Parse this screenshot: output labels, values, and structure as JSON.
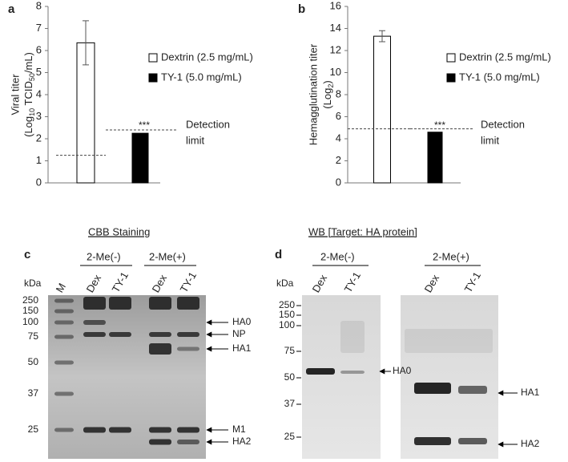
{
  "chart_data": [
    {
      "type": "bar",
      "panel_label": "a",
      "ylabel": "Viral titer",
      "ylabel_parts": [
        "(Log",
        "10",
        " TCID",
        "50",
        "/mL)"
      ],
      "categories": [
        null,
        null
      ],
      "series": [
        {
          "name": "Dextrin (2.5 mg/mL)",
          "color": "#ffffff",
          "values": [
            6.35,
            null
          ],
          "errors": [
            1.0,
            null
          ]
        },
        {
          "name": "TY-1 (5.0 mg/mL)",
          "color": "#000000",
          "values": [
            null,
            2.25
          ],
          "errors": [
            null,
            null
          ]
        }
      ],
      "detection_limit": [
        1.25,
        2.4
      ],
      "annotations": [
        "***",
        "Detection",
        "limit"
      ],
      "ylim": [
        0,
        8
      ],
      "yticks": [
        0,
        1,
        2,
        3,
        4,
        5,
        6,
        7,
        8
      ]
    },
    {
      "type": "bar",
      "panel_label": "b",
      "ylabel": "Hemagglutination titer",
      "ylabel_parts": [
        "(Log",
        "2",
        ")"
      ],
      "categories": [
        null,
        null
      ],
      "series": [
        {
          "name": "Dextrin (2.5 mg/mL)",
          "color": "#ffffff",
          "values": [
            13.3,
            null
          ],
          "errors": [
            0.5,
            null
          ]
        },
        {
          "name": "TY-1 (5.0 mg/mL)",
          "color": "#000000",
          "values": [
            null,
            4.6
          ],
          "errors": [
            null,
            null
          ]
        }
      ],
      "detection_limit": [
        4.9,
        4.9
      ],
      "annotations": [
        "***",
        "Detection",
        "limit"
      ],
      "ylim": [
        0,
        16
      ],
      "yticks": [
        0,
        2,
        4,
        6,
        8,
        10,
        12,
        14,
        16
      ]
    }
  ],
  "gels": [
    {
      "label": "c",
      "title": "CBB Staining",
      "groups": [
        "2-Me(-)",
        "2-Me(+)"
      ],
      "unit": "kDa",
      "lanes": [
        "M",
        "Dex",
        "TY-1",
        "Dex",
        "TY-1"
      ],
      "markers": [
        "250",
        "150",
        "100",
        "75",
        "50",
        "37",
        "25"
      ],
      "bands": [
        "HA0",
        "NP",
        "HA1",
        "M1",
        "HA2"
      ]
    },
    {
      "label": "d",
      "title": "WB [Target: HA protein]",
      "groups": [
        "2-Me(-)",
        "2-Me(+)"
      ],
      "unit": "kDa",
      "lanes": [
        "Dex",
        "TY-1",
        "Dex",
        "TY-1"
      ],
      "markers": [
        "250",
        "150",
        "100",
        "75",
        "50",
        "37",
        "25"
      ],
      "bands": [
        "HA0",
        "HA1",
        "HA2"
      ]
    }
  ]
}
